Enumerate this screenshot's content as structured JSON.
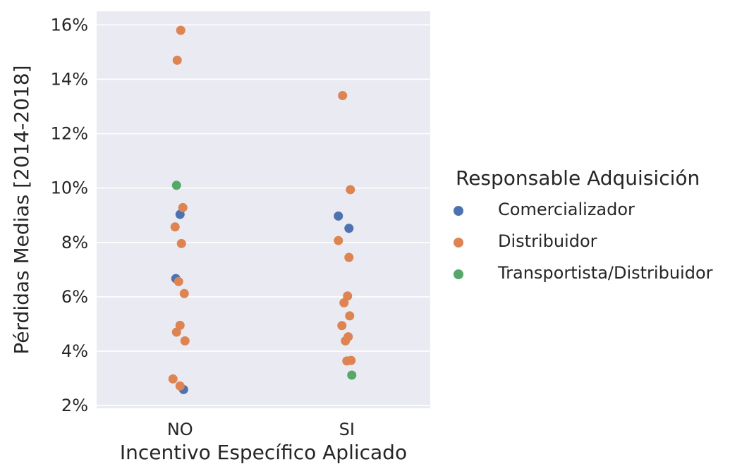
{
  "chart_data": {
    "type": "scatter",
    "subtype": "stripplot",
    "title": "",
    "xlabel": "Incentivo Específico Aplicado",
    "ylabel": "Pérdidas Medias [2014-2018]",
    "categories": [
      "NO",
      "SI"
    ],
    "ylim": [
      0.019,
      0.165
    ],
    "yticks": [
      0.02,
      0.04,
      0.06,
      0.08,
      0.1,
      0.12,
      0.14,
      0.16
    ],
    "ytick_labels": [
      "2%",
      "4%",
      "6%",
      "8%",
      "10%",
      "12%",
      "14%",
      "16%"
    ],
    "grid": true,
    "background": "#eaeaf2",
    "legend": {
      "title": "Responsable Adquisición",
      "placement": "right"
    },
    "series": [
      {
        "name": "Comercializador",
        "color": "#4c72b0",
        "points": [
          {
            "x": "NO",
            "y": 0.0903
          },
          {
            "x": "NO",
            "y": 0.0667
          },
          {
            "x": "NO",
            "y": 0.0259
          },
          {
            "x": "SI",
            "y": 0.0897
          },
          {
            "x": "SI",
            "y": 0.0852
          }
        ]
      },
      {
        "name": "Distribuidor",
        "color": "#dd8452",
        "points": [
          {
            "x": "NO",
            "y": 0.158
          },
          {
            "x": "NO",
            "y": 0.147
          },
          {
            "x": "NO",
            "y": 0.0928
          },
          {
            "x": "NO",
            "y": 0.0857
          },
          {
            "x": "NO",
            "y": 0.0796
          },
          {
            "x": "NO",
            "y": 0.0656
          },
          {
            "x": "NO",
            "y": 0.0612
          },
          {
            "x": "NO",
            "y": 0.0495
          },
          {
            "x": "NO",
            "y": 0.047
          },
          {
            "x": "NO",
            "y": 0.0438
          },
          {
            "x": "NO",
            "y": 0.0298
          },
          {
            "x": "NO",
            "y": 0.0272
          },
          {
            "x": "SI",
            "y": 0.134
          },
          {
            "x": "SI",
            "y": 0.0994
          },
          {
            "x": "SI",
            "y": 0.0807
          },
          {
            "x": "SI",
            "y": 0.0745
          },
          {
            "x": "SI",
            "y": 0.0603
          },
          {
            "x": "SI",
            "y": 0.0578
          },
          {
            "x": "SI",
            "y": 0.053
          },
          {
            "x": "SI",
            "y": 0.0494
          },
          {
            "x": "SI",
            "y": 0.0453
          },
          {
            "x": "SI",
            "y": 0.0438
          },
          {
            "x": "SI",
            "y": 0.0366
          },
          {
            "x": "SI",
            "y": 0.0364
          }
        ]
      },
      {
        "name": "Transportista/Distribuidor",
        "color": "#55a868",
        "points": [
          {
            "x": "NO",
            "y": 0.101
          },
          {
            "x": "SI",
            "y": 0.0312
          }
        ]
      }
    ]
  }
}
